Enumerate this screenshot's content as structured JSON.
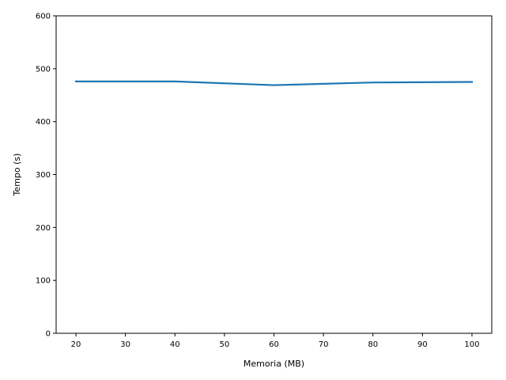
{
  "chart_data": {
    "type": "line",
    "title": "",
    "xlabel": "Memoria (MB)",
    "ylabel": "Tempo (s)",
    "xlim": [
      16,
      104
    ],
    "ylim": [
      0,
      600
    ],
    "x_ticks": [
      20,
      30,
      40,
      50,
      60,
      70,
      80,
      90,
      100
    ],
    "y_ticks": [
      0,
      100,
      200,
      300,
      400,
      500,
      600
    ],
    "grid": false,
    "legend": "none",
    "series": [
      {
        "color": "#1f77b4",
        "x": [
          20,
          40,
          60,
          80,
          100
        ],
        "values": [
          476,
          476,
          469,
          474,
          475
        ]
      }
    ]
  }
}
